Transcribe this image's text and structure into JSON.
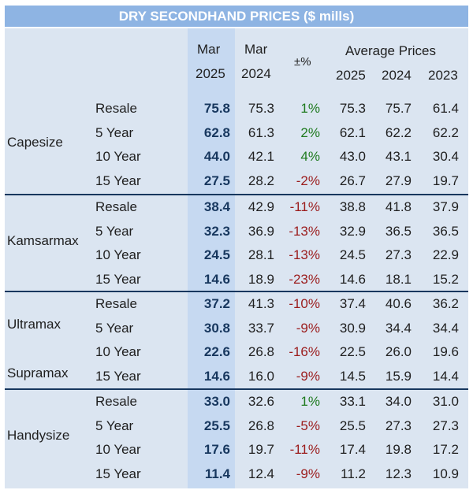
{
  "title": "DRY SECONDHAND PRICES ($ mills)",
  "headers": {
    "col1_line1": "Mar",
    "col1_line2": "2025",
    "col2_line1": "Mar",
    "col2_line2": "2024",
    "col3": "±%",
    "avg": "Average Prices",
    "avg1": "2025",
    "avg2": "2024",
    "avg3": "2023"
  },
  "groups": [
    {
      "label": "Capesize",
      "rows": [
        {
          "age": "Resale",
          "mar25": "75.8",
          "mar24": "75.3",
          "chg": "1%",
          "a25": "75.3",
          "a24": "75.7",
          "a23": "61.4"
        },
        {
          "age": "5 Year",
          "mar25": "62.8",
          "mar24": "61.3",
          "chg": "2%",
          "a25": "62.1",
          "a24": "62.2",
          "a23": "62.2"
        },
        {
          "age": "10 Year",
          "mar25": "44.0",
          "mar24": "42.1",
          "chg": "4%",
          "a25": "43.0",
          "a24": "43.1",
          "a23": "30.4"
        },
        {
          "age": "15 Year",
          "mar25": "27.5",
          "mar24": "28.2",
          "chg": "-2%",
          "a25": "26.7",
          "a24": "27.9",
          "a23": "19.7"
        }
      ]
    },
    {
      "label": "Kamsarmax",
      "rows": [
        {
          "age": "Resale",
          "mar25": "38.4",
          "mar24": "42.9",
          "chg": "-11%",
          "a25": "38.8",
          "a24": "41.8",
          "a23": "37.9"
        },
        {
          "age": "5 Year",
          "mar25": "32.3",
          "mar24": "36.9",
          "chg": "-13%",
          "a25": "32.9",
          "a24": "36.5",
          "a23": "36.5"
        },
        {
          "age": "10 Year",
          "mar25": "24.5",
          "mar24": "28.1",
          "chg": "-13%",
          "a25": "24.5",
          "a24": "27.3",
          "a23": "22.9"
        },
        {
          "age": "15 Year",
          "mar25": "14.6",
          "mar24": "18.9",
          "chg": "-23%",
          "a25": "14.6",
          "a24": "18.1",
          "a23": "15.2"
        }
      ]
    },
    {
      "label": "Ultramax",
      "label2": "Supramax",
      "rows": [
        {
          "age": "Resale",
          "mar25": "37.2",
          "mar24": "41.3",
          "chg": "-10%",
          "a25": "37.4",
          "a24": "40.6",
          "a23": "36.2"
        },
        {
          "age": "5 Year",
          "mar25": "30.8",
          "mar24": "33.7",
          "chg": "-9%",
          "a25": "30.9",
          "a24": "34.4",
          "a23": "34.4"
        },
        {
          "age": "10 Year",
          "mar25": "22.6",
          "mar24": "26.8",
          "chg": "-16%",
          "a25": "22.5",
          "a24": "26.0",
          "a23": "19.6"
        },
        {
          "age": "15 Year",
          "mar25": "14.6",
          "mar24": "16.0",
          "chg": "-9%",
          "a25": "14.5",
          "a24": "15.9",
          "a23": "14.4"
        }
      ]
    },
    {
      "label": "Handysize",
      "rows": [
        {
          "age": "Resale",
          "mar25": "33.0",
          "mar24": "32.6",
          "chg": "1%",
          "a25": "33.1",
          "a24": "34.0",
          "a23": "31.0"
        },
        {
          "age": "5 Year",
          "mar25": "25.5",
          "mar24": "26.8",
          "chg": "-5%",
          "a25": "25.5",
          "a24": "27.3",
          "a23": "27.3"
        },
        {
          "age": "10 Year",
          "mar25": "17.6",
          "mar24": "19.7",
          "chg": "-11%",
          "a25": "17.4",
          "a24": "19.8",
          "a23": "17.2"
        },
        {
          "age": "15 Year",
          "mar25": "11.4",
          "mar24": "12.4",
          "chg": "-9%",
          "a25": "11.2",
          "a24": "12.3",
          "a23": "10.9"
        }
      ]
    }
  ]
}
